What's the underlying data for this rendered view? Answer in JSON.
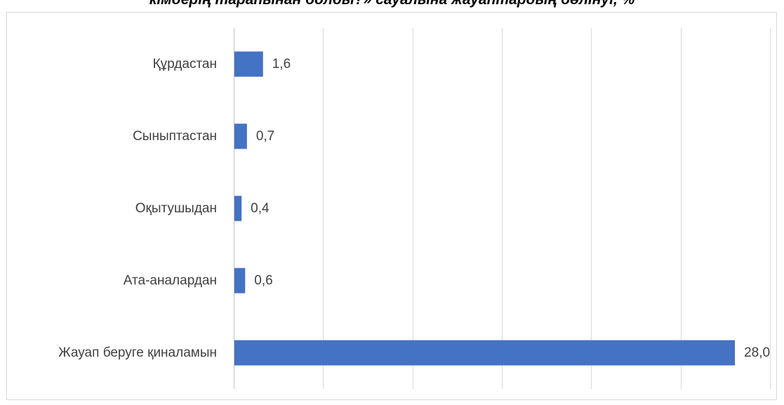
{
  "chart_data": {
    "type": "bar",
    "orientation": "horizontal",
    "title": "кімдерің тарапынан болды?» сауалына жауаптардың бөлінуі, %",
    "categories": [
      "Құрдастан",
      "Сыныптастан",
      "Оқытушыдан",
      "Ата-аналардан",
      "Жауап беруге қиналамын"
    ],
    "values": [
      1.6,
      0.7,
      0.4,
      0.6,
      28.0
    ],
    "value_labels": [
      "1,6",
      "0,7",
      "0,4",
      "0,6",
      "28,0"
    ],
    "xlim": [
      0,
      30
    ],
    "x_major_step": 5,
    "grid": true,
    "legend": "none",
    "colors": {
      "bar": "#4472c4",
      "grid": "#d9d9d9",
      "axis": "#bfbfbf",
      "text": "#404040"
    }
  }
}
